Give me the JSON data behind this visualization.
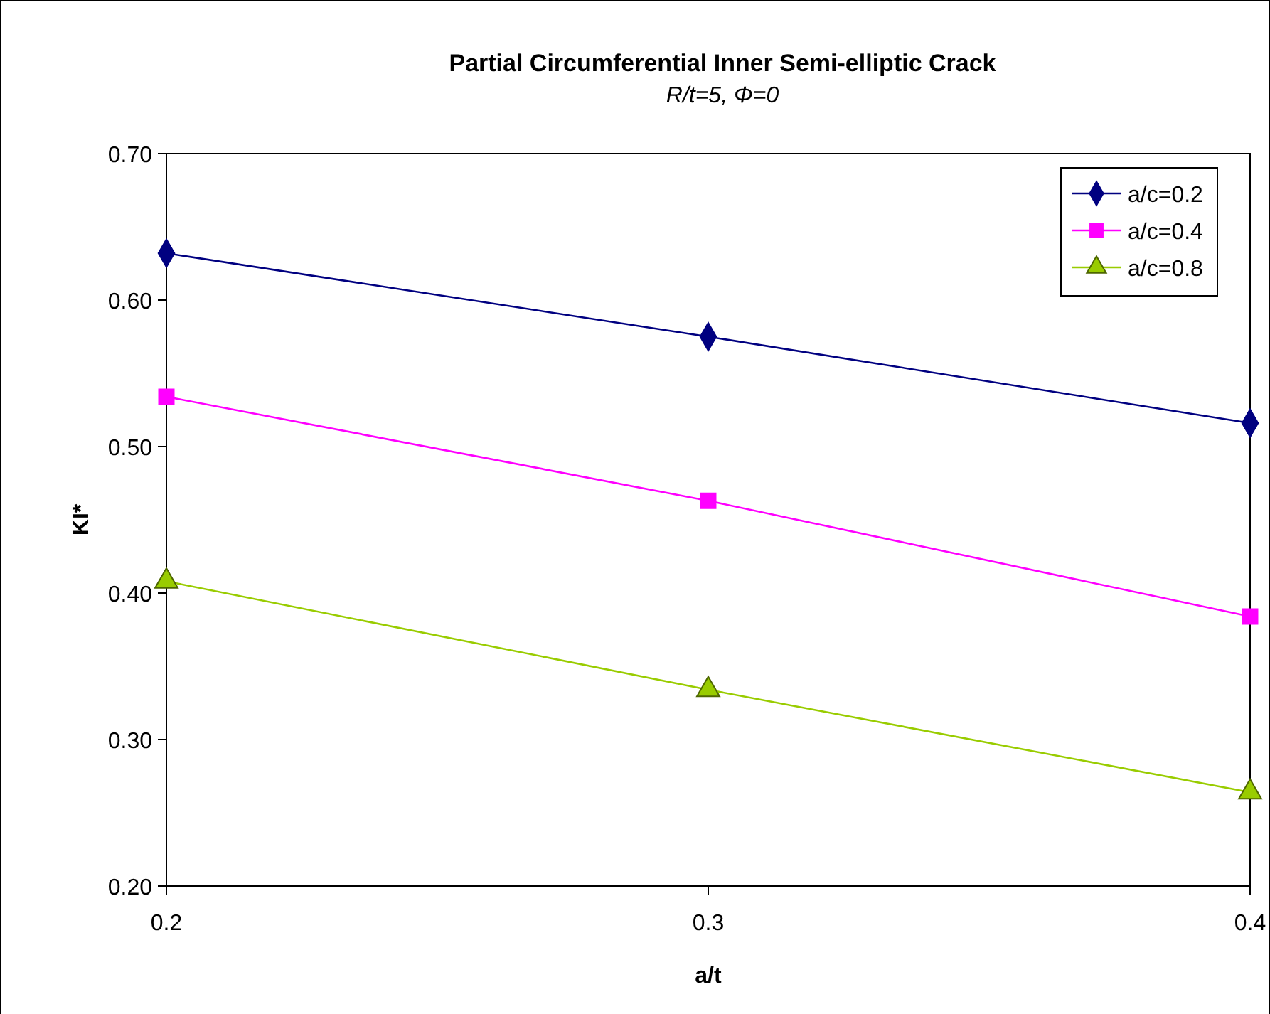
{
  "chart_data": {
    "type": "line",
    "title": "Partial Circumferential Inner Semi-elliptic Crack",
    "subtitle": "R/t=5, Φ=0",
    "xlabel": "a/t",
    "ylabel": "KI*",
    "x": [
      0.2,
      0.3,
      0.4
    ],
    "xlim": [
      0.2,
      0.4
    ],
    "xticks": [
      {
        "value": 0.2,
        "label": "0.2"
      },
      {
        "value": 0.3,
        "label": "0.3"
      },
      {
        "value": 0.4,
        "label": "0.4"
      }
    ],
    "ylim": [
      0.2,
      0.7
    ],
    "yticks": [
      {
        "value": 0.2,
        "label": "0.20"
      },
      {
        "value": 0.3,
        "label": "0.30"
      },
      {
        "value": 0.4,
        "label": "0.40"
      },
      {
        "value": 0.5,
        "label": "0.50"
      },
      {
        "value": 0.6,
        "label": "0.60"
      },
      {
        "value": 0.7,
        "label": "0.70"
      }
    ],
    "grid": false,
    "legend": "top right",
    "line_style": "solid",
    "series": [
      {
        "name": "a/c=0.2",
        "color": "#000080",
        "marker": "diamond",
        "values": [
          0.632,
          0.575,
          0.516
        ]
      },
      {
        "name": "a/c=0.4",
        "color": "#ff00ff",
        "marker": "square",
        "values": [
          0.534,
          0.463,
          0.384
        ]
      },
      {
        "name": "a/c=0.8",
        "color": "#99cc00",
        "marker": "triangle",
        "values": [
          0.408,
          0.334,
          0.264
        ]
      }
    ]
  }
}
